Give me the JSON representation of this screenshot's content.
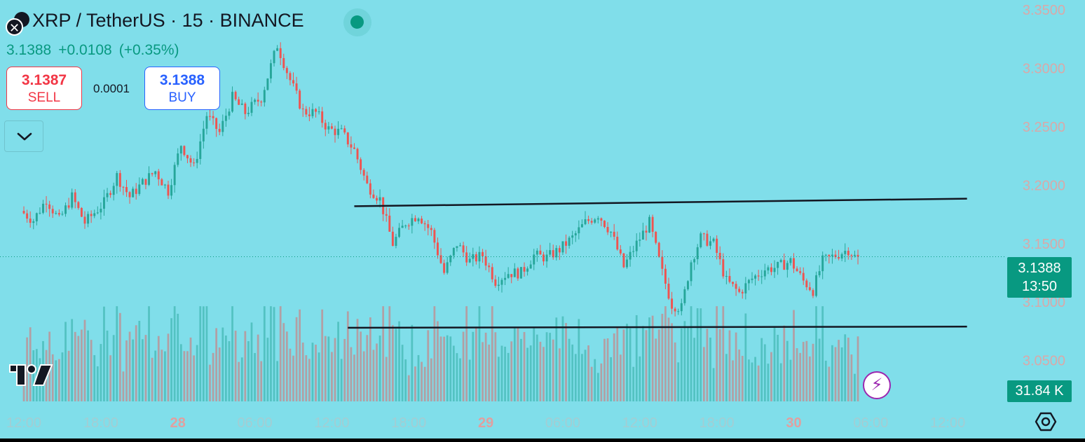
{
  "header": {
    "title": "XRP / TetherUS · 15 · BINANCE",
    "last_price": "3.1388",
    "change": "+0.0108",
    "change_pct": "(+0.35%)",
    "close_icon": "close-icon",
    "status": "market-open"
  },
  "trade": {
    "sell_price": "3.1387",
    "sell_label": "SELL",
    "spread": "0.0001",
    "buy_price": "3.1388",
    "buy_label": "BUY",
    "dropdown_icon": "chevron-down-icon"
  },
  "price_scale": {
    "current_price": "3.1388",
    "countdown": "13:50",
    "volume_label": "31.84 K"
  },
  "colors": {
    "background": "#80deea",
    "up": "#26a69a",
    "down": "#ef5350",
    "accent": "#089981"
  },
  "footer": {
    "settings_icon": "settings-icon",
    "flash_icon": "lightning-icon",
    "logo": "tradingview-logo"
  },
  "chart_data": {
    "type": "candlestick",
    "y_ticks": [
      "3.3500",
      "3.3000",
      "3.2500",
      "3.2000",
      "3.1500",
      "3.1000",
      "3.0500"
    ],
    "y_tick_values": [
      3.35,
      3.3,
      3.25,
      3.2,
      3.15,
      3.1,
      3.05
    ],
    "ylim": [
      3.015,
      3.3585
    ],
    "x_ticks": [
      "12:00",
      "18:00",
      "28",
      "06:00",
      "12:00",
      "18:00",
      "29",
      "06:00",
      "12:00",
      "18:00",
      "30",
      "06:00",
      "12:00"
    ],
    "x_tick_bold": [
      false,
      false,
      true,
      false,
      false,
      false,
      true,
      false,
      false,
      false,
      true,
      false,
      false
    ],
    "x_tick_bars": [
      0,
      24,
      48,
      72,
      96,
      120,
      144,
      168,
      192,
      216,
      240,
      264,
      288
    ],
    "x_range": [
      -7,
      305
    ],
    "total_bars": 267,
    "current_price": 3.1388,
    "anchors": [
      [
        0,
        3.178
      ],
      [
        4,
        3.17
      ],
      [
        8,
        3.188
      ],
      [
        12,
        3.17
      ],
      [
        16,
        3.19
      ],
      [
        20,
        3.168
      ],
      [
        26,
        3.185
      ],
      [
        30,
        3.208
      ],
      [
        34,
        3.19
      ],
      [
        38,
        3.202
      ],
      [
        42,
        3.212
      ],
      [
        46,
        3.195
      ],
      [
        50,
        3.235
      ],
      [
        54,
        3.215
      ],
      [
        58,
        3.26
      ],
      [
        62,
        3.245
      ],
      [
        66,
        3.275
      ],
      [
        70,
        3.262
      ],
      [
        75,
        3.275
      ],
      [
        80,
        3.32
      ],
      [
        84,
        3.29
      ],
      [
        88,
        3.263
      ],
      [
        92,
        3.262
      ],
      [
        96,
        3.248
      ],
      [
        100,
        3.245
      ],
      [
        104,
        3.23
      ],
      [
        108,
        3.2
      ],
      [
        112,
        3.188
      ],
      [
        116,
        3.15
      ],
      [
        120,
        3.168
      ],
      [
        124,
        3.175
      ],
      [
        128,
        3.16
      ],
      [
        132,
        3.125
      ],
      [
        136,
        3.15
      ],
      [
        140,
        3.135
      ],
      [
        144,
        3.14
      ],
      [
        148,
        3.118
      ],
      [
        152,
        3.125
      ],
      [
        156,
        3.125
      ],
      [
        160,
        3.14
      ],
      [
        164,
        3.138
      ],
      [
        168,
        3.145
      ],
      [
        172,
        3.155
      ],
      [
        176,
        3.168
      ],
      [
        180,
        3.175
      ],
      [
        184,
        3.16
      ],
      [
        188,
        3.13
      ],
      [
        192,
        3.15
      ],
      [
        196,
        3.168
      ],
      [
        200,
        3.125
      ],
      [
        203,
        3.098
      ],
      [
        206,
        3.095
      ],
      [
        209,
        3.135
      ],
      [
        212,
        3.155
      ],
      [
        216,
        3.15
      ],
      [
        220,
        3.118
      ],
      [
        224,
        3.108
      ],
      [
        228,
        3.12
      ],
      [
        232,
        3.128
      ],
      [
        236,
        3.13
      ],
      [
        240,
        3.135
      ],
      [
        244,
        3.118
      ],
      [
        247,
        3.11
      ],
      [
        250,
        3.135
      ],
      [
        254,
        3.14
      ],
      [
        258,
        3.145
      ],
      [
        260,
        3.1388
      ]
    ],
    "volume_ylim": [
      0,
      100
    ],
    "trendlines": [
      {
        "name": "resistance",
        "from": [
          103,
          3.182
        ],
        "to": [
          294,
          3.1885
        ]
      },
      {
        "name": "support",
        "from": [
          101,
          3.078
        ],
        "to": [
          294,
          3.079
        ]
      }
    ]
  }
}
